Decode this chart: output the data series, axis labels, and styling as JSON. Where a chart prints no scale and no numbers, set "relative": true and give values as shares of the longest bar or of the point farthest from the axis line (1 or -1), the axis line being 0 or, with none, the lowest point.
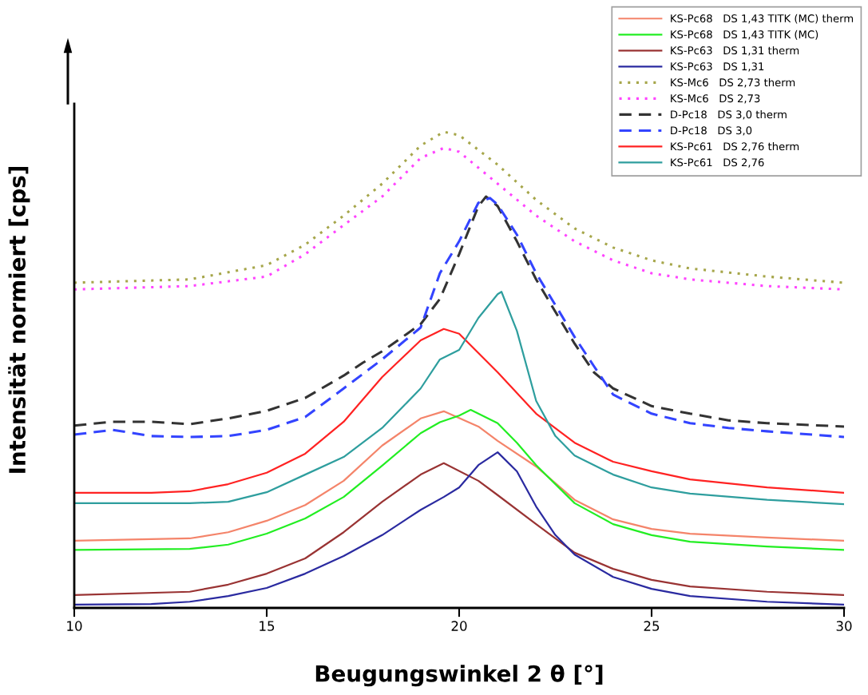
{
  "chart_data": {
    "type": "line",
    "relative": true,
    "xlabel": "Beugungswinkel 2 θ [°]",
    "ylabel": "Intensität normiert [cps]",
    "xlim": [
      10,
      30
    ],
    "xticks": [
      10,
      15,
      20,
      25,
      30
    ],
    "grid": false,
    "legend": "top right",
    "marker": "none",
    "tick_labels": "x",
    "series": [
      {
        "name": "KS-Pc68   DS 1,43 TITK (MC) therm",
        "color": "#f4846a",
        "line_style": "solid",
        "x": [
          10,
          13,
          14,
          15,
          16,
          17,
          18,
          19,
          19.6,
          20.5,
          21,
          22,
          23,
          24,
          25,
          26,
          28,
          30
        ],
        "values": [
          0.141,
          0.146,
          0.159,
          0.183,
          0.216,
          0.267,
          0.341,
          0.398,
          0.413,
          0.381,
          0.351,
          0.297,
          0.227,
          0.186,
          0.166,
          0.156,
          0.148,
          0.141
        ]
      },
      {
        "name": "KS-Pc68   DS 1,43 TITK (MC)",
        "color": "#22ee22",
        "line_style": "solid",
        "x": [
          10,
          13,
          14,
          15,
          16,
          17,
          18,
          19,
          19.5,
          20,
          20.3,
          21,
          21.5,
          22,
          23,
          24,
          25,
          26,
          28,
          30
        ],
        "values": [
          0.122,
          0.124,
          0.133,
          0.156,
          0.188,
          0.233,
          0.299,
          0.367,
          0.39,
          0.404,
          0.416,
          0.388,
          0.347,
          0.3,
          0.22,
          0.176,
          0.153,
          0.139,
          0.129,
          0.122
        ]
      },
      {
        "name": "KS-Pc63   DS 1,31 therm",
        "color": "#993333",
        "line_style": "solid",
        "x": [
          10,
          13,
          14,
          15,
          16,
          17,
          18,
          19,
          19.6,
          20.5,
          21,
          22,
          23,
          24,
          25,
          26,
          28,
          30
        ],
        "values": [
          0.027,
          0.034,
          0.049,
          0.072,
          0.104,
          0.159,
          0.223,
          0.28,
          0.304,
          0.267,
          0.237,
          0.176,
          0.116,
          0.082,
          0.059,
          0.045,
          0.034,
          0.027
        ]
      },
      {
        "name": "KS-Pc63   DS 1,31",
        "color": "#2a2aa0",
        "line_style": "solid",
        "x": [
          10,
          12,
          13,
          14,
          15,
          16,
          17,
          18,
          19,
          19.6,
          20,
          20.5,
          21,
          21.5,
          22,
          22.5,
          23,
          24,
          25,
          26,
          28,
          30
        ],
        "values": [
          0.007,
          0.008,
          0.013,
          0.025,
          0.042,
          0.072,
          0.109,
          0.153,
          0.206,
          0.233,
          0.253,
          0.3,
          0.327,
          0.287,
          0.213,
          0.153,
          0.112,
          0.065,
          0.04,
          0.025,
          0.013,
          0.007
        ]
      },
      {
        "name": "KS-Mc6   DS 2,73 therm",
        "color": "#a6a64a",
        "line_style": "dotted",
        "x": [
          10,
          13,
          15,
          16,
          17,
          18,
          19,
          19.6,
          20,
          21,
          22,
          23,
          24,
          25,
          26,
          28,
          30
        ],
        "values": [
          0.683,
          0.69,
          0.72,
          0.763,
          0.824,
          0.891,
          0.971,
          1.0,
          0.993,
          0.931,
          0.857,
          0.797,
          0.757,
          0.73,
          0.713,
          0.696,
          0.683
        ]
      },
      {
        "name": "KS-Mc6   DS 2,73",
        "color": "#ff44ff",
        "line_style": "dotted",
        "x": [
          10,
          13,
          15,
          16,
          17,
          18,
          19,
          19.6,
          20,
          21,
          22,
          23,
          24,
          25,
          26,
          28,
          30
        ],
        "values": [
          0.669,
          0.676,
          0.696,
          0.743,
          0.804,
          0.864,
          0.945,
          0.966,
          0.958,
          0.891,
          0.824,
          0.77,
          0.73,
          0.703,
          0.69,
          0.676,
          0.669
        ]
      },
      {
        "name": "D-Pc18   DS 3,0 therm",
        "color": "#333333",
        "line_style": "dashed",
        "x": [
          10,
          11,
          12,
          13,
          14,
          15,
          16,
          17,
          17.5,
          18,
          19,
          19.5,
          20,
          20.5,
          20.7,
          21,
          21.5,
          22,
          22.5,
          23,
          23.5,
          24,
          25,
          26,
          27,
          28,
          30
        ],
        "values": [
          0.383,
          0.391,
          0.391,
          0.386,
          0.398,
          0.414,
          0.441,
          0.488,
          0.515,
          0.539,
          0.596,
          0.649,
          0.743,
          0.844,
          0.864,
          0.844,
          0.77,
          0.69,
          0.622,
          0.555,
          0.495,
          0.461,
          0.424,
          0.408,
          0.394,
          0.388,
          0.381
        ]
      },
      {
        "name": "D-Pc18   DS 3,0",
        "color": "#3344ff",
        "line_style": "dashed",
        "x": [
          10,
          11,
          12,
          13,
          14,
          15,
          16,
          17,
          18,
          19,
          19.5,
          20,
          20.5,
          20.8,
          21,
          21.5,
          22,
          22.5,
          23,
          23.5,
          24,
          25,
          26,
          27,
          28,
          30
        ],
        "values": [
          0.364,
          0.374,
          0.361,
          0.359,
          0.361,
          0.374,
          0.401,
          0.461,
          0.522,
          0.589,
          0.703,
          0.77,
          0.851,
          0.861,
          0.847,
          0.784,
          0.703,
          0.636,
          0.569,
          0.508,
          0.448,
          0.408,
          0.388,
          0.378,
          0.371,
          0.359
        ]
      },
      {
        "name": "KS-Pc61   DS 2,76 therm",
        "color": "#ff2222",
        "line_style": "solid",
        "x": [
          10,
          12,
          13,
          14,
          15,
          16,
          17,
          18,
          19,
          19.6,
          20,
          21,
          22,
          23,
          24,
          25,
          26,
          28,
          30
        ],
        "values": [
          0.242,
          0.242,
          0.245,
          0.26,
          0.284,
          0.324,
          0.391,
          0.485,
          0.562,
          0.586,
          0.576,
          0.495,
          0.408,
          0.347,
          0.307,
          0.287,
          0.27,
          0.253,
          0.242
        ]
      },
      {
        "name": "KS-Pc61   DS 2,76",
        "color": "#2e9e9e",
        "line_style": "solid",
        "x": [
          10,
          13,
          14,
          15,
          16,
          17,
          18,
          19,
          19.5,
          20,
          20.5,
          21,
          21.1,
          21.5,
          22,
          22.5,
          23,
          24,
          25,
          26,
          28,
          30
        ],
        "values": [
          0.22,
          0.22,
          0.223,
          0.243,
          0.28,
          0.317,
          0.378,
          0.461,
          0.522,
          0.542,
          0.609,
          0.659,
          0.664,
          0.582,
          0.435,
          0.361,
          0.32,
          0.28,
          0.253,
          0.24,
          0.227,
          0.218
        ]
      }
    ]
  }
}
